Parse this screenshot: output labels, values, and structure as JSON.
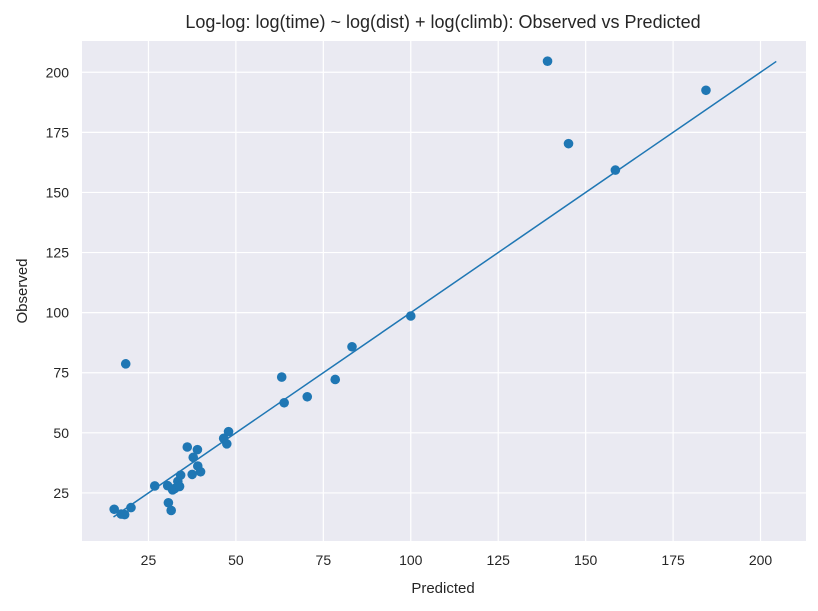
{
  "chart_data": {
    "type": "scatter",
    "title": "Log-log: log(time) ~ log(dist) + log(climb): Observed vs Predicted",
    "xlabel": "Predicted",
    "ylabel": "Observed",
    "xlim": [
      6,
      213
    ],
    "ylim": [
      5,
      213
    ],
    "xticks": [
      25,
      50,
      75,
      100,
      125,
      150,
      175,
      200
    ],
    "yticks": [
      25,
      50,
      75,
      100,
      125,
      150,
      175,
      200
    ],
    "grid": true,
    "legend": "none",
    "colors": {
      "background": "#eaeaf2",
      "grid": "#ffffff",
      "points": "#1f77b4",
      "line": "#1f77b4"
    },
    "reference_line": {
      "x": [
        15,
        204.5
      ],
      "y": [
        15,
        204.5
      ]
    },
    "series": [
      {
        "points": [
          {
            "x": 15.2,
            "y": 18.2
          },
          {
            "x": 17.2,
            "y": 16.2
          },
          {
            "x": 18.2,
            "y": 16.0
          },
          {
            "x": 18.5,
            "y": 78.7
          },
          {
            "x": 20.0,
            "y": 18.9
          },
          {
            "x": 26.8,
            "y": 27.9
          },
          {
            "x": 30.5,
            "y": 28.0
          },
          {
            "x": 30.7,
            "y": 20.9
          },
          {
            "x": 31.5,
            "y": 17.7
          },
          {
            "x": 31.9,
            "y": 26.3
          },
          {
            "x": 32.5,
            "y": 26.8
          },
          {
            "x": 33.4,
            "y": 29.8
          },
          {
            "x": 33.9,
            "y": 27.7
          },
          {
            "x": 34.2,
            "y": 32.4
          },
          {
            "x": 36.1,
            "y": 44.1
          },
          {
            "x": 37.5,
            "y": 32.7
          },
          {
            "x": 37.8,
            "y": 39.8
          },
          {
            "x": 39.0,
            "y": 43.0
          },
          {
            "x": 39.1,
            "y": 36.2
          },
          {
            "x": 39.9,
            "y": 33.8
          },
          {
            "x": 46.5,
            "y": 47.7
          },
          {
            "x": 47.4,
            "y": 45.4
          },
          {
            "x": 47.9,
            "y": 50.5
          },
          {
            "x": 63.1,
            "y": 73.2
          },
          {
            "x": 63.8,
            "y": 62.5
          },
          {
            "x": 70.4,
            "y": 65.0
          },
          {
            "x": 78.4,
            "y": 72.2
          },
          {
            "x": 83.2,
            "y": 85.8
          },
          {
            "x": 100.0,
            "y": 98.6
          },
          {
            "x": 139.1,
            "y": 204.6
          },
          {
            "x": 145.1,
            "y": 170.3
          },
          {
            "x": 158.5,
            "y": 159.3
          },
          {
            "x": 184.4,
            "y": 192.5
          }
        ]
      }
    ]
  }
}
